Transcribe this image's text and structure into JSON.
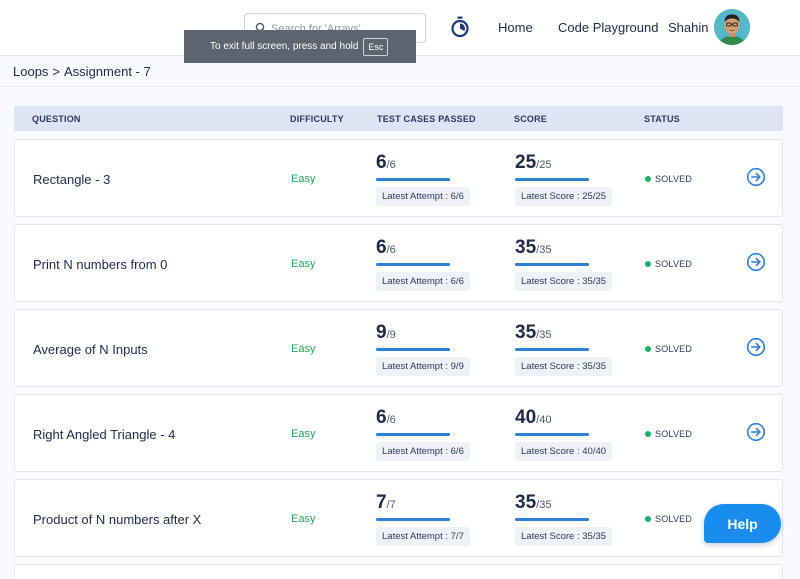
{
  "header": {
    "search_placeholder": "Search for 'Arrays'",
    "nav_home": "Home",
    "nav_playground": "Code Playground",
    "user_name": "Shahin"
  },
  "toast": {
    "text": "To exit full screen, press and hold",
    "key": "Esc"
  },
  "breadcrumb": {
    "parent": "Loops",
    "separator": ">",
    "current": "Assignment - 7"
  },
  "table": {
    "headers": {
      "question": "QUESTION",
      "difficulty": "DIFFICULTY",
      "tests": "TEST CASES PASSED",
      "score": "SCORE",
      "status": "STATUS"
    },
    "rows": [
      {
        "question": "Rectangle - 3",
        "difficulty": "Easy",
        "tests_passed": "6",
        "tests_total": "/6",
        "latest_attempt": "Latest Attempt : 6/6",
        "score": "25",
        "score_total": "/25",
        "latest_score": "Latest Score : 25/25",
        "status": "SOLVED"
      },
      {
        "question": "Print N numbers from 0",
        "difficulty": "Easy",
        "tests_passed": "6",
        "tests_total": "/6",
        "latest_attempt": "Latest Attempt : 6/6",
        "score": "35",
        "score_total": "/35",
        "latest_score": "Latest Score : 35/35",
        "status": "SOLVED"
      },
      {
        "question": "Average of N Inputs",
        "difficulty": "Easy",
        "tests_passed": "9",
        "tests_total": "/9",
        "latest_attempt": "Latest Attempt : 9/9",
        "score": "35",
        "score_total": "/35",
        "latest_score": "Latest Score : 35/35",
        "status": "SOLVED"
      },
      {
        "question": "Right Angled Triangle - 4",
        "difficulty": "Easy",
        "tests_passed": "6",
        "tests_total": "/6",
        "latest_attempt": "Latest Attempt : 6/6",
        "score": "40",
        "score_total": "/40",
        "latest_score": "Latest Score : 40/40",
        "status": "SOLVED"
      },
      {
        "question": "Product of N numbers after X",
        "difficulty": "Easy",
        "tests_passed": "7",
        "tests_total": "/7",
        "latest_attempt": "Latest Attempt : 7/7",
        "score": "35",
        "score_total": "/35",
        "latest_score": "Latest Score : 35/35",
        "status": "SOLVED"
      }
    ]
  },
  "help_label": "Help",
  "colors": {
    "accent": "#2f7fd8",
    "easy": "#22a45d",
    "solved": "#17b26a",
    "help": "#1a8cf0"
  }
}
